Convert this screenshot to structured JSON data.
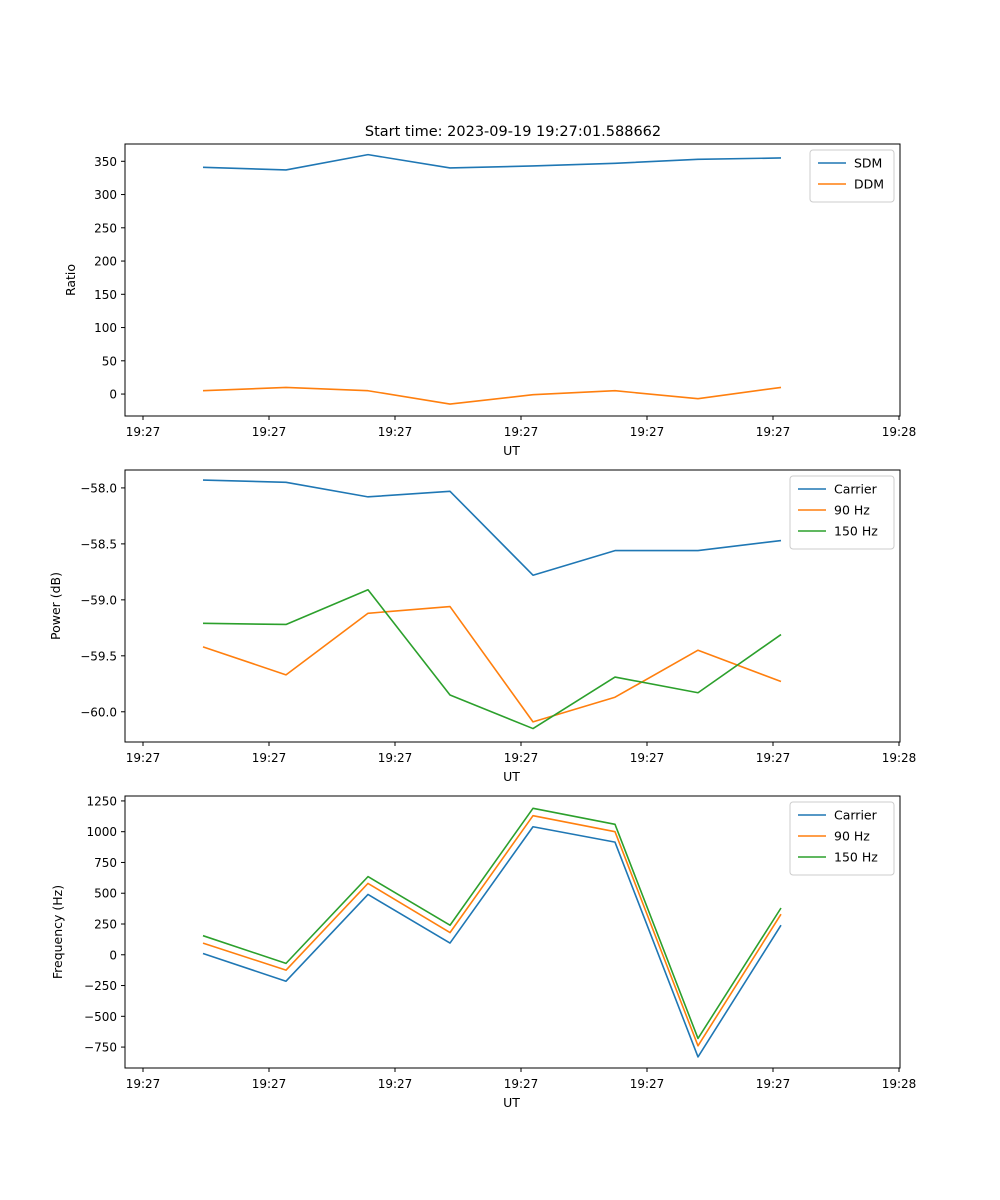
{
  "figure_title": "Start time: 2023-09-19 19:27:01.588662",
  "colors": {
    "blue": "#1f77b4",
    "orange": "#ff7f0e",
    "green": "#2ca02c"
  },
  "chart_data": [
    {
      "type": "line",
      "title": "Start time: 2023-09-19 19:27:01.588662",
      "xlabel": "UT",
      "ylabel": "Ratio",
      "x_tick_labels": [
        "19:27",
        "19:27",
        "19:27",
        "19:27",
        "19:27",
        "19:27",
        "19:28"
      ],
      "y_ticks": [
        0,
        50,
        100,
        150,
        200,
        250,
        300,
        350
      ],
      "y_tick_labels": [
        "0",
        "50",
        "100",
        "150",
        "200",
        "250",
        "300",
        "350"
      ],
      "ylim": [
        -33,
        376
      ],
      "x_points": [
        1,
        2,
        3,
        4,
        5,
        6,
        7,
        8
      ],
      "legend_position": "top-right",
      "series": [
        {
          "name": "SDM",
          "color": "#1f77b4",
          "values": [
            341,
            337,
            360,
            340,
            343,
            347,
            353,
            355
          ]
        },
        {
          "name": "DDM",
          "color": "#ff7f0e",
          "values": [
            5,
            10,
            5,
            -15,
            -1,
            5,
            -7,
            10
          ]
        }
      ]
    },
    {
      "type": "line",
      "title": "",
      "xlabel": "UT",
      "ylabel": "Power (dB)",
      "x_tick_labels": [
        "19:27",
        "19:27",
        "19:27",
        "19:27",
        "19:27",
        "19:27",
        "19:28"
      ],
      "y_ticks": [
        -58.0,
        -58.5,
        -59.0,
        -59.5,
        -60.0
      ],
      "y_tick_labels": [
        "−58.0",
        "−58.5",
        "−59.0",
        "−59.5",
        "−60.0"
      ],
      "ylim": [
        -60.27,
        -57.84
      ],
      "x_points": [
        1,
        2,
        3,
        4,
        5,
        6,
        7,
        8
      ],
      "legend_position": "top-right",
      "series": [
        {
          "name": "Carrier",
          "color": "#1f77b4",
          "values": [
            -57.93,
            -57.95,
            -58.08,
            -58.03,
            -58.78,
            -58.56,
            -58.56,
            -58.47
          ]
        },
        {
          "name": "90 Hz",
          "color": "#ff7f0e",
          "values": [
            -59.42,
            -59.67,
            -59.12,
            -59.06,
            -60.09,
            -59.87,
            -59.45,
            -59.73
          ]
        },
        {
          "name": "150 Hz",
          "color": "#2ca02c",
          "values": [
            -59.21,
            -59.22,
            -58.91,
            -59.85,
            -60.15,
            -59.69,
            -59.83,
            -59.31
          ]
        }
      ]
    },
    {
      "type": "line",
      "title": "",
      "xlabel": "UT",
      "ylabel": "Frequency (Hz)",
      "x_tick_labels": [
        "19:27",
        "19:27",
        "19:27",
        "19:27",
        "19:27",
        "19:27",
        "19:28"
      ],
      "y_ticks": [
        1250,
        1000,
        750,
        500,
        250,
        0,
        -250,
        -500,
        -750
      ],
      "y_tick_labels": [
        "1250",
        "1000",
        "750",
        "500",
        "250",
        "0",
        "−250",
        "−500",
        "−750"
      ],
      "ylim": [
        -920,
        1290
      ],
      "x_points": [
        1,
        2,
        3,
        4,
        5,
        6,
        7,
        8
      ],
      "legend_position": "top-right",
      "series": [
        {
          "name": "Carrier",
          "color": "#1f77b4",
          "values": [
            10,
            -215,
            490,
            95,
            1040,
            915,
            -830,
            240
          ]
        },
        {
          "name": "90 Hz",
          "color": "#ff7f0e",
          "values": [
            95,
            -125,
            580,
            180,
            1130,
            1000,
            -740,
            330
          ]
        },
        {
          "name": "150 Hz",
          "color": "#2ca02c",
          "values": [
            155,
            -70,
            635,
            240,
            1190,
            1060,
            -680,
            380
          ]
        }
      ]
    }
  ]
}
